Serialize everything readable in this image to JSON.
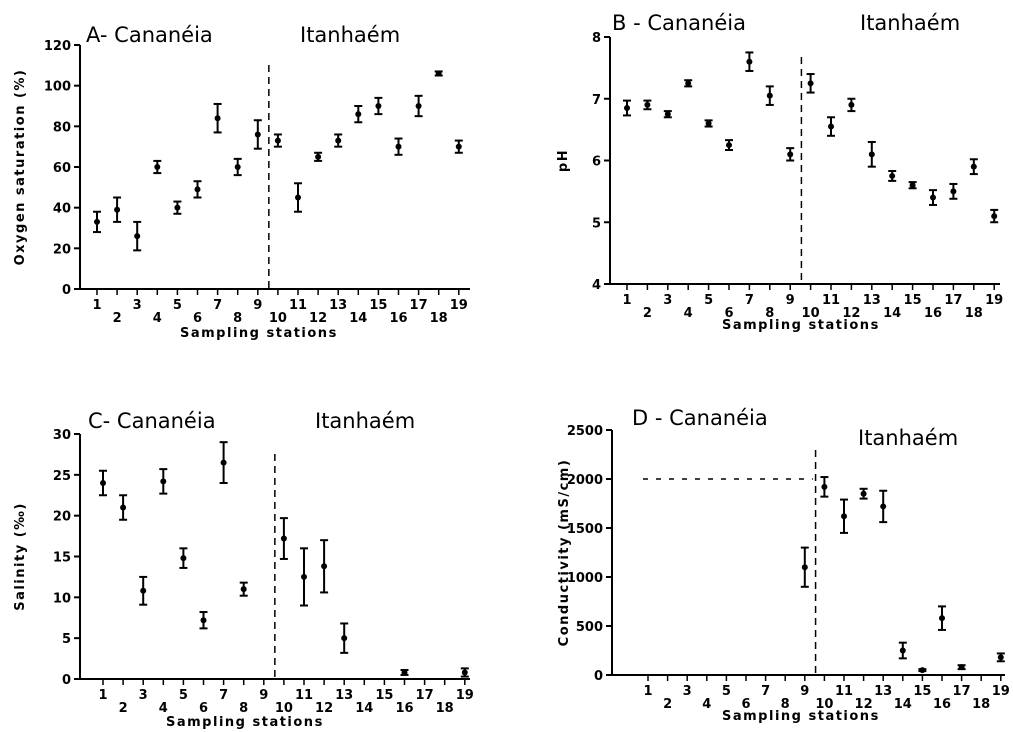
{
  "chart_data": [
    {
      "panel": "A",
      "type": "scatter",
      "title": "A- Cananéia",
      "region_right": "Itanhaém",
      "xlabel": "Sampling stations",
      "ylabel": "Oxygen saturation (%)",
      "ylim": [
        0,
        120
      ],
      "yticks": [
        "0",
        "20",
        "40",
        "60",
        "80",
        "100",
        "120"
      ],
      "xticks": [
        "1",
        "2",
        "3",
        "4",
        "5",
        "6",
        "7",
        "8",
        "9",
        "10",
        "11",
        "12",
        "13",
        "14",
        "15",
        "16",
        "17",
        "18",
        "19"
      ],
      "divider_after_station": 9,
      "series": [
        {
          "points": [
            {
              "x": 1,
              "y": 33,
              "err": 5
            },
            {
              "x": 2,
              "y": 39,
              "err": 6
            },
            {
              "x": 3,
              "y": 26,
              "err": 7
            },
            {
              "x": 4,
              "y": 60,
              "err": 3
            },
            {
              "x": 5,
              "y": 40,
              "err": 3
            },
            {
              "x": 6,
              "y": 49,
              "err": 4
            },
            {
              "x": 7,
              "y": 84,
              "err": 7
            },
            {
              "x": 8,
              "y": 60,
              "err": 4
            },
            {
              "x": 9,
              "y": 76,
              "err": 7
            },
            {
              "x": 10,
              "y": 73,
              "err": 3
            },
            {
              "x": 11,
              "y": 45,
              "err": 7
            },
            {
              "x": 12,
              "y": 65,
              "err": 2
            },
            {
              "x": 13,
              "y": 73,
              "err": 3
            },
            {
              "x": 14,
              "y": 86,
              "err": 4
            },
            {
              "x": 15,
              "y": 90,
              "err": 4
            },
            {
              "x": 16,
              "y": 70,
              "err": 4
            },
            {
              "x": 17,
              "y": 90,
              "err": 5
            },
            {
              "x": 18,
              "y": 106,
              "err": 1
            },
            {
              "x": 19,
              "y": 70,
              "err": 3
            }
          ]
        }
      ]
    },
    {
      "panel": "B",
      "type": "scatter",
      "title": "B - Cananéia",
      "region_right": "Itanhaém",
      "xlabel": "Sampling stations",
      "ylabel": "pH",
      "ylim": [
        4,
        8
      ],
      "yticks": [
        "4",
        "5",
        "6",
        "7",
        "8"
      ],
      "xticks": [
        "1",
        "2",
        "3",
        "4",
        "5",
        "6",
        "7",
        "8",
        "9",
        "10",
        "11",
        "12",
        "13",
        "14",
        "15",
        "16",
        "17",
        "18",
        "19"
      ],
      "divider_after_station": 9,
      "series": [
        {
          "points": [
            {
              "x": 1,
              "y": 6.85,
              "err": 0.12
            },
            {
              "x": 2,
              "y": 6.9,
              "err": 0.07
            },
            {
              "x": 3,
              "y": 6.75,
              "err": 0.05
            },
            {
              "x": 4,
              "y": 7.25,
              "err": 0.05
            },
            {
              "x": 5,
              "y": 6.6,
              "err": 0.05
            },
            {
              "x": 6,
              "y": 6.25,
              "err": 0.08
            },
            {
              "x": 7,
              "y": 7.6,
              "err": 0.15
            },
            {
              "x": 8,
              "y": 7.05,
              "err": 0.15
            },
            {
              "x": 9,
              "y": 6.1,
              "err": 0.1
            },
            {
              "x": 10,
              "y": 7.25,
              "err": 0.15
            },
            {
              "x": 11,
              "y": 6.55,
              "err": 0.15
            },
            {
              "x": 12,
              "y": 6.9,
              "err": 0.1
            },
            {
              "x": 13,
              "y": 6.1,
              "err": 0.2
            },
            {
              "x": 14,
              "y": 5.75,
              "err": 0.08
            },
            {
              "x": 15,
              "y": 5.6,
              "err": 0.05
            },
            {
              "x": 16,
              "y": 5.4,
              "err": 0.12
            },
            {
              "x": 17,
              "y": 5.5,
              "err": 0.12
            },
            {
              "x": 18,
              "y": 5.9,
              "err": 0.12
            },
            {
              "x": 19,
              "y": 5.1,
              "err": 0.1
            }
          ]
        }
      ]
    },
    {
      "panel": "C",
      "type": "scatter",
      "title": "C- Cananéia",
      "region_right": "Itanhaém",
      "xlabel": "Sampling stations",
      "ylabel": "Salinity (‰)",
      "ylim": [
        0,
        30
      ],
      "yticks": [
        "0",
        "5",
        "10",
        "15",
        "20",
        "25",
        "30"
      ],
      "xticks": [
        "1",
        "2",
        "3",
        "4",
        "5",
        "6",
        "7",
        "8",
        "9",
        "10",
        "11",
        "12",
        "13",
        "14",
        "15",
        "16",
        "17",
        "18",
        "19"
      ],
      "divider_after_station": 9,
      "series": [
        {
          "points": [
            {
              "x": 1,
              "y": 24,
              "err": 1.5
            },
            {
              "x": 2,
              "y": 21,
              "err": 1.5
            },
            {
              "x": 3,
              "y": 10.8,
              "err": 1.7
            },
            {
              "x": 4,
              "y": 24.2,
              "err": 1.5
            },
            {
              "x": 5,
              "y": 14.8,
              "err": 1.2
            },
            {
              "x": 6,
              "y": 7.2,
              "err": 1
            },
            {
              "x": 7,
              "y": 26.5,
              "err": 2.5
            },
            {
              "x": 8,
              "y": 11,
              "err": 0.8
            },
            {
              "x": 10,
              "y": 17.2,
              "err": 2.5
            },
            {
              "x": 11,
              "y": 12.5,
              "err": 3.5
            },
            {
              "x": 12,
              "y": 13.8,
              "err": 3.2
            },
            {
              "x": 13,
              "y": 5,
              "err": 1.8
            },
            {
              "x": 16,
              "y": 0.8,
              "err": 0.3
            },
            {
              "x": 19,
              "y": 0.8,
              "err": 0.5
            }
          ]
        }
      ]
    },
    {
      "panel": "D",
      "type": "scatter",
      "title": "D - Cananéia",
      "region_right": "Itanhaém",
      "xlabel": "Sampling stations",
      "ylabel": "Conductivity (mS/cm)",
      "ylim": [
        0,
        2500
      ],
      "yticks": [
        "0",
        "500",
        "1000",
        "1500",
        "2000",
        "2500"
      ],
      "xticks": [
        "1",
        "2",
        "3",
        "4",
        "5",
        "6",
        "7",
        "8",
        "9",
        "10",
        "11",
        "12",
        "13",
        "14",
        "15",
        "16",
        "17",
        "18",
        "19"
      ],
      "divider_after_station": 9,
      "reference_line": {
        "y": 2000,
        "from_station": 1,
        "to_station": 9
      },
      "series": [
        {
          "points": [
            {
              "x": 9,
              "y": 1100,
              "err": 200
            },
            {
              "x": 10,
              "y": 1920,
              "err": 100
            },
            {
              "x": 11,
              "y": 1620,
              "err": 170
            },
            {
              "x": 12,
              "y": 1850,
              "err": 50
            },
            {
              "x": 13,
              "y": 1720,
              "err": 160
            },
            {
              "x": 14,
              "y": 250,
              "err": 80
            },
            {
              "x": 15,
              "y": 50,
              "err": 10
            },
            {
              "x": 16,
              "y": 580,
              "err": 120
            },
            {
              "x": 17,
              "y": 80,
              "err": 20
            },
            {
              "x": 19,
              "y": 180,
              "err": 40
            }
          ]
        }
      ]
    }
  ]
}
